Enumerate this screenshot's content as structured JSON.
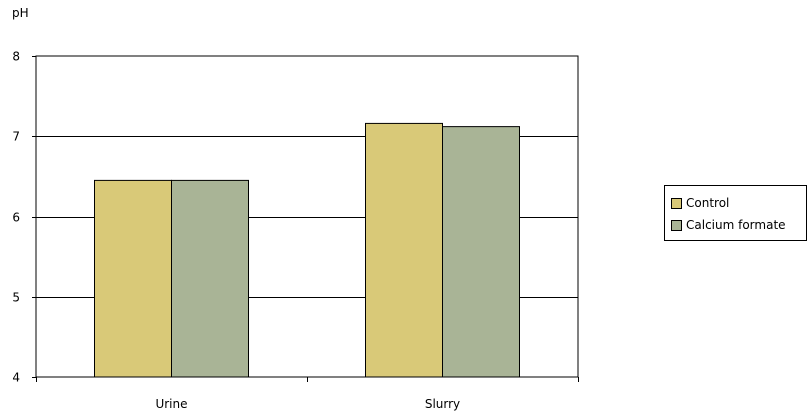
{
  "chart_data": {
    "type": "bar",
    "title": "",
    "xlabel": "",
    "ylabel": "pH",
    "categories": [
      "Urine",
      "Slurry"
    ],
    "series": [
      {
        "name": "Control",
        "values": [
          6.45,
          7.16
        ],
        "color": "#d9c978"
      },
      {
        "name": "Calcium formate",
        "values": [
          6.45,
          7.12
        ],
        "color": "#a9b496"
      }
    ],
    "ylim": [
      4,
      8
    ],
    "yticks": [
      "4",
      "5",
      "6",
      "7",
      "8"
    ],
    "grid": true,
    "legend_position": "right"
  }
}
